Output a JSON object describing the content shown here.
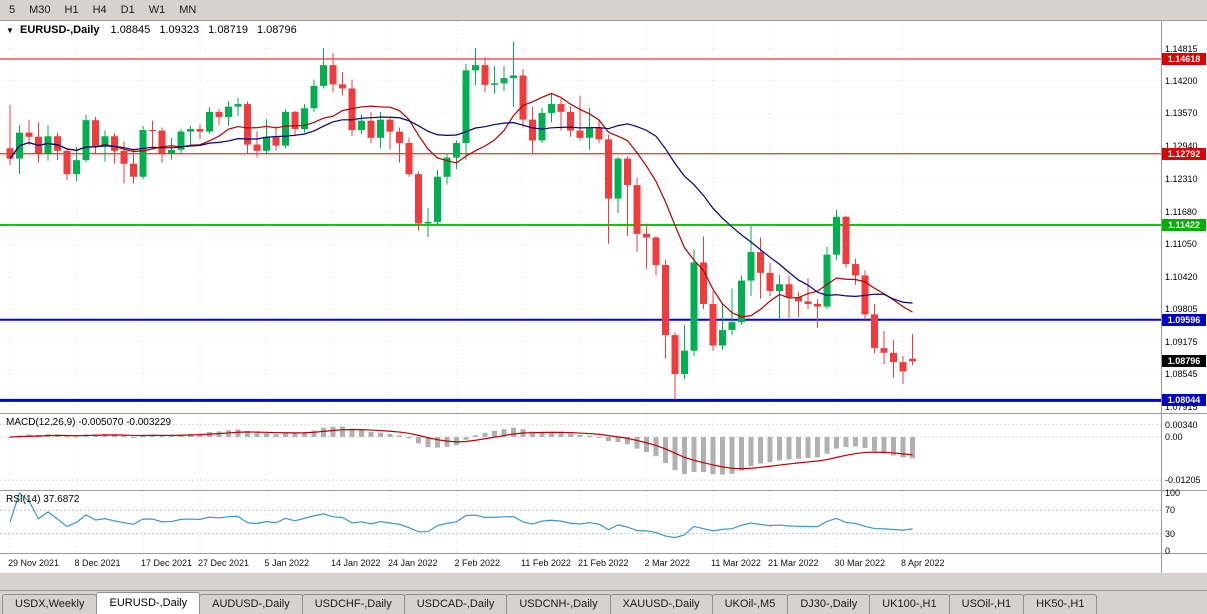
{
  "toolbar": {
    "timeframes": [
      {
        "label": "5"
      },
      {
        "label": "M30"
      },
      {
        "label": "H1"
      },
      {
        "label": "H4"
      },
      {
        "label": "D1"
      },
      {
        "label": "W1"
      },
      {
        "label": "MN"
      }
    ]
  },
  "chart": {
    "symbol": "EURUSD-,Daily",
    "ohlc": {
      "open": "1.08845",
      "high": "1.09323",
      "low": "1.08719",
      "close": "1.08796"
    },
    "macd_label": "MACD(12,26,9) -0.005070 -0.003229",
    "rsi_label": "RSI(14) 37.6872",
    "price_axis": [
      {
        "text": "1.14815",
        "value": 1.14815
      },
      {
        "text": "1.14200",
        "value": 1.142
      },
      {
        "text": "1.13570",
        "value": 1.1357
      },
      {
        "text": "1.12940",
        "value": 1.1294
      },
      {
        "text": "1.12310",
        "value": 1.1231
      },
      {
        "text": "1.11680",
        "value": 1.1168
      },
      {
        "text": "1.11050",
        "value": 1.1105
      },
      {
        "text": "1.10420",
        "value": 1.1042
      },
      {
        "text": "1.09805",
        "value": 1.09805
      },
      {
        "text": "1.09175",
        "value": 1.09175
      },
      {
        "text": "1.08545",
        "value": 1.08545
      },
      {
        "text": "1.07915",
        "value": 1.07915
      }
    ],
    "hlines": [
      {
        "text": "1.14618",
        "value": 1.14618,
        "color": "#e80000",
        "chip": "#dd0000",
        "width": 1
      },
      {
        "text": "1.12792",
        "value": 1.12792,
        "color": "#e80000",
        "chip": "#dd0000",
        "width": 1
      },
      {
        "text": "1.11422",
        "value": 1.11422,
        "color": "#00d000",
        "chip": "#00b000",
        "width": 2
      },
      {
        "text": "1.09596",
        "value": 1.09596,
        "color": "#0000e0",
        "chip": "#0000c8",
        "width": 2
      },
      {
        "text": "1.08044",
        "value": 1.08044,
        "color": "#0000e0",
        "chip": "#0000c8",
        "width": 3
      }
    ],
    "current_price": {
      "text": "1.08796",
      "value": 1.08796,
      "chip": "#000000"
    },
    "macd_axis": [
      {
        "text": "0.00340",
        "value": 0.0034
      },
      {
        "text": "0.00",
        "value": 0
      },
      {
        "text": "-0.01205",
        "value": -0.01205
      }
    ],
    "rsi_axis": [
      {
        "text": "100",
        "value": 100
      },
      {
        "text": "70",
        "value": 70
      },
      {
        "text": "30",
        "value": 30
      },
      {
        "text": "0",
        "value": 0
      }
    ],
    "date_axis": [
      {
        "text": "29 Nov 2021",
        "index": 0
      },
      {
        "text": "8 Dec 2021",
        "index": 7
      },
      {
        "text": "17 Dec 2021",
        "index": 14
      },
      {
        "text": "27 Dec 2021",
        "index": 20
      },
      {
        "text": "5 Jan 2022",
        "index": 27
      },
      {
        "text": "14 Jan 2022",
        "index": 34
      },
      {
        "text": "24 Jan 2022",
        "index": 40
      },
      {
        "text": "2 Feb 2022",
        "index": 47
      },
      {
        "text": "11 Feb 2022",
        "index": 54
      },
      {
        "text": "21 Feb 2022",
        "index": 60
      },
      {
        "text": "2 Mar 2022",
        "index": 67
      },
      {
        "text": "11 Mar 2022",
        "index": 74
      },
      {
        "text": "21 Mar 2022",
        "index": 80
      },
      {
        "text": "30 Mar 2022",
        "index": 87
      },
      {
        "text": "8 Apr 2022",
        "index": 94
      }
    ]
  },
  "chart_data": {
    "type": "candlestick",
    "title": "EURUSD-,Daily",
    "price_range": [
      1.078,
      1.1535
    ],
    "macd_range": [
      -0.0148,
      0.0064
    ],
    "rsi_range": [
      0,
      100
    ],
    "colors": {
      "up": "#00b050",
      "down": "#f03c3c",
      "macd_hist": "#b0b0b0",
      "macd_signal": "#c00000",
      "rsi": "#3a96d2",
      "ma_fast": "#b00000",
      "ma_slow": "#000080"
    },
    "overlays": [
      {
        "type": "sma",
        "period": 10,
        "color": "#b00000"
      },
      {
        "type": "sma",
        "period": 21,
        "color": "#000080"
      }
    ],
    "indicators": [
      {
        "name": "MACD",
        "params": [
          12,
          26,
          9
        ],
        "current": "-0.005070 -0.003229"
      },
      {
        "name": "RSI",
        "params": [
          14
        ],
        "current": 37.6872
      }
    ],
    "candles": [
      [
        1.129,
        1.1374,
        1.1258,
        1.127
      ],
      [
        1.127,
        1.1334,
        1.124,
        1.132
      ],
      [
        1.132,
        1.1345,
        1.1296,
        1.1312
      ],
      [
        1.1312,
        1.134,
        1.1262,
        1.128
      ],
      [
        1.128,
        1.1334,
        1.1266,
        1.1313
      ],
      [
        1.1313,
        1.132,
        1.1267,
        1.1285
      ],
      [
        1.1285,
        1.129,
        1.1228,
        1.124
      ],
      [
        1.124,
        1.1292,
        1.1226,
        1.1267
      ],
      [
        1.1267,
        1.1355,
        1.1263,
        1.1344
      ],
      [
        1.1344,
        1.135,
        1.128,
        1.1294
      ],
      [
        1.1294,
        1.1324,
        1.1264,
        1.1313
      ],
      [
        1.1313,
        1.1319,
        1.126,
        1.1285
      ],
      [
        1.1285,
        1.1303,
        1.1222,
        1.126
      ],
      [
        1.126,
        1.129,
        1.1222,
        1.1235
      ],
      [
        1.1235,
        1.1333,
        1.123,
        1.1325
      ],
      [
        1.1325,
        1.1343,
        1.129,
        1.1324
      ],
      [
        1.1324,
        1.133,
        1.1262,
        1.128
      ],
      [
        1.128,
        1.131,
        1.1268,
        1.1287
      ],
      [
        1.1287,
        1.1327,
        1.128,
        1.1322
      ],
      [
        1.1322,
        1.1333,
        1.1295,
        1.1327
      ],
      [
        1.1327,
        1.1336,
        1.1307,
        1.1322
      ],
      [
        1.1322,
        1.1369,
        1.1318,
        1.136
      ],
      [
        1.136,
        1.1366,
        1.1335,
        1.135
      ],
      [
        1.135,
        1.138,
        1.1333,
        1.137
      ],
      [
        1.137,
        1.1387,
        1.1352,
        1.1375
      ],
      [
        1.1375,
        1.138,
        1.1279,
        1.1297
      ],
      [
        1.1297,
        1.1323,
        1.1272,
        1.1285
      ],
      [
        1.1285,
        1.1346,
        1.128,
        1.1312
      ],
      [
        1.1312,
        1.1332,
        1.1285,
        1.1295
      ],
      [
        1.1295,
        1.1365,
        1.129,
        1.136
      ],
      [
        1.136,
        1.1362,
        1.1313,
        1.1327
      ],
      [
        1.1327,
        1.1375,
        1.132,
        1.1367
      ],
      [
        1.1367,
        1.1422,
        1.136,
        1.141
      ],
      [
        1.141,
        1.1483,
        1.1405,
        1.145
      ],
      [
        1.145,
        1.1473,
        1.1398,
        1.1413
      ],
      [
        1.1413,
        1.1436,
        1.1392,
        1.1405
      ],
      [
        1.1405,
        1.1422,
        1.1313,
        1.1325
      ],
      [
        1.1325,
        1.1355,
        1.1317,
        1.1343
      ],
      [
        1.1343,
        1.136,
        1.13,
        1.131
      ],
      [
        1.131,
        1.136,
        1.129,
        1.1345
      ],
      [
        1.1345,
        1.1348,
        1.1288,
        1.1322
      ],
      [
        1.1322,
        1.133,
        1.1262,
        1.13
      ],
      [
        1.13,
        1.131,
        1.1235,
        1.124
      ],
      [
        1.124,
        1.1245,
        1.1131,
        1.1145
      ],
      [
        1.1145,
        1.1175,
        1.1119,
        1.1148
      ],
      [
        1.1148,
        1.1248,
        1.1141,
        1.1235
      ],
      [
        1.1235,
        1.1279,
        1.122,
        1.1272
      ],
      [
        1.1272,
        1.1305,
        1.125,
        1.13
      ],
      [
        1.13,
        1.1452,
        1.1268,
        1.144
      ],
      [
        1.144,
        1.1483,
        1.1411,
        1.145
      ],
      [
        1.145,
        1.1465,
        1.1398,
        1.1412
      ],
      [
        1.1412,
        1.1448,
        1.1395,
        1.1415
      ],
      [
        1.1415,
        1.1448,
        1.14,
        1.1425
      ],
      [
        1.1425,
        1.1495,
        1.137,
        1.143
      ],
      [
        1.143,
        1.1442,
        1.133,
        1.1345
      ],
      [
        1.1345,
        1.137,
        1.1278,
        1.1305
      ],
      [
        1.1305,
        1.1368,
        1.13,
        1.1358
      ],
      [
        1.1358,
        1.1395,
        1.134,
        1.1375
      ],
      [
        1.1375,
        1.1385,
        1.1324,
        1.136
      ],
      [
        1.136,
        1.137,
        1.1312,
        1.1324
      ],
      [
        1.1324,
        1.1391,
        1.1305,
        1.131
      ],
      [
        1.131,
        1.1368,
        1.1287,
        1.133
      ],
      [
        1.133,
        1.1343,
        1.13,
        1.1307
      ],
      [
        1.1307,
        1.1316,
        1.1106,
        1.1193
      ],
      [
        1.1193,
        1.1273,
        1.1165,
        1.127
      ],
      [
        1.127,
        1.1274,
        1.1121,
        1.1219
      ],
      [
        1.1219,
        1.1233,
        1.109,
        1.1125
      ],
      [
        1.1125,
        1.1145,
        1.1058,
        1.1118
      ],
      [
        1.1118,
        1.1121,
        1.1045,
        1.1065
      ],
      [
        1.1065,
        1.1075,
        1.0885,
        1.093
      ],
      [
        1.093,
        1.0935,
        1.0806,
        1.0855
      ],
      [
        1.0855,
        1.095,
        1.0845,
        1.09
      ],
      [
        1.09,
        1.1095,
        1.089,
        1.107
      ],
      [
        1.107,
        1.112,
        1.098,
        1.099
      ],
      [
        1.099,
        1.1015,
        1.09,
        1.091
      ],
      [
        1.091,
        1.099,
        1.0901,
        1.094
      ],
      [
        1.094,
        1.102,
        1.093,
        1.0955
      ],
      [
        1.0955,
        1.1045,
        1.095,
        1.1035
      ],
      [
        1.1035,
        1.1143,
        1.1005,
        1.109
      ],
      [
        1.109,
        1.1118,
        1.1,
        1.105
      ],
      [
        1.105,
        1.107,
        1.1005,
        1.1015
      ],
      [
        1.1015,
        1.1046,
        1.096,
        1.1028
      ],
      [
        1.1028,
        1.1045,
        1.0963,
        1.1003
      ],
      [
        1.1003,
        1.1014,
        1.0965,
        1.0995
      ],
      [
        1.0995,
        1.104,
        1.098,
        1.099
      ],
      [
        1.099,
        1.0999,
        1.0944,
        1.0985
      ],
      [
        1.0985,
        1.11,
        1.098,
        1.1085
      ],
      [
        1.1085,
        1.1171,
        1.1075,
        1.1158
      ],
      [
        1.1158,
        1.116,
        1.106,
        1.1067
      ],
      [
        1.1067,
        1.1077,
        1.1027,
        1.1045
      ],
      [
        1.1045,
        1.1055,
        1.096,
        1.097
      ],
      [
        1.097,
        1.099,
        1.0895,
        1.0905
      ],
      [
        1.0905,
        1.0938,
        1.0874,
        1.0896
      ],
      [
        1.0896,
        1.092,
        1.0848,
        1.0878
      ],
      [
        1.0878,
        1.089,
        1.0836,
        1.086
      ],
      [
        1.08845,
        1.09323,
        1.08719,
        1.08796
      ]
    ]
  },
  "tabs": {
    "active_index": 1,
    "items": [
      {
        "label": "USDX,Weekly"
      },
      {
        "label": "EURUSD-,Daily"
      },
      {
        "label": "AUDUSD-,Daily"
      },
      {
        "label": "USDCHF-,Daily"
      },
      {
        "label": "USDCAD-,Daily"
      },
      {
        "label": "USDCNH-,Daily"
      },
      {
        "label": "XAUUSD-,Daily"
      },
      {
        "label": "UKOil-,M5"
      },
      {
        "label": "DJ30-,Daily"
      },
      {
        "label": "UK100-,H1"
      },
      {
        "label": "USOil-,H1"
      },
      {
        "label": "HK50-,H1"
      }
    ]
  }
}
